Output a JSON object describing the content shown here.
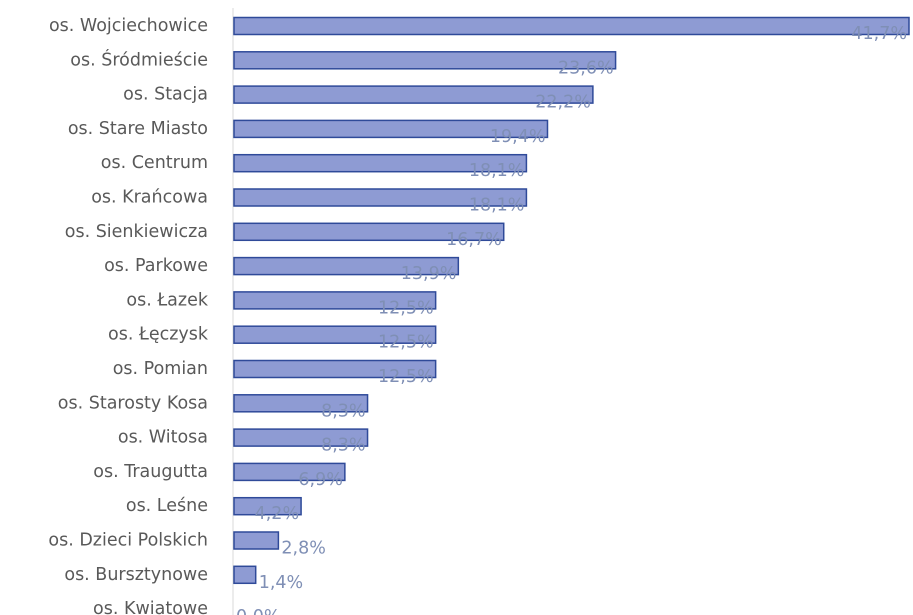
{
  "chart_data": {
    "type": "bar",
    "orientation": "horizontal",
    "title": "",
    "xlabel": "",
    "ylabel": "",
    "grid": false,
    "legend": "none",
    "xlim": [
      0,
      41.7
    ],
    "colors": {
      "bar_fill": "#8e9bd3",
      "bar_stroke": "#2f4a99",
      "category_text": "#595959",
      "value_text": "#7f8fb5",
      "axis": "#d9d9d9"
    },
    "categories": [
      "os. Wojciechowice",
      "os. Śródmieście",
      "os. Stacja",
      "os. Stare Miasto",
      "os. Centrum",
      "os. Krańcowa",
      "os. Sienkiewicza",
      "os. Parkowe",
      "os. Łazek",
      "os. Łęczysk",
      "os. Pomian",
      "os. Starosty Kosa",
      "os. Witosa",
      "os. Traugutta",
      "os. Leśne",
      "os. Dzieci Polskich",
      "os. Bursztynowe",
      "os. Kwiatowe"
    ],
    "values": [
      41.7,
      23.6,
      22.2,
      19.4,
      18.1,
      18.1,
      16.7,
      13.9,
      12.5,
      12.5,
      12.5,
      8.3,
      8.3,
      6.9,
      4.2,
      2.8,
      1.4,
      0.0
    ],
    "value_labels": [
      "41,7%",
      "23,6%",
      "22,2%",
      "19,4%",
      "18,1%",
      "18,1%",
      "16,7%",
      "13,9%",
      "12,5%",
      "12,5%",
      "12,5%",
      "8,3%",
      "8,3%",
      "6,9%",
      "4,2%",
      "2,8%",
      "1,4%",
      "0,0%"
    ]
  }
}
